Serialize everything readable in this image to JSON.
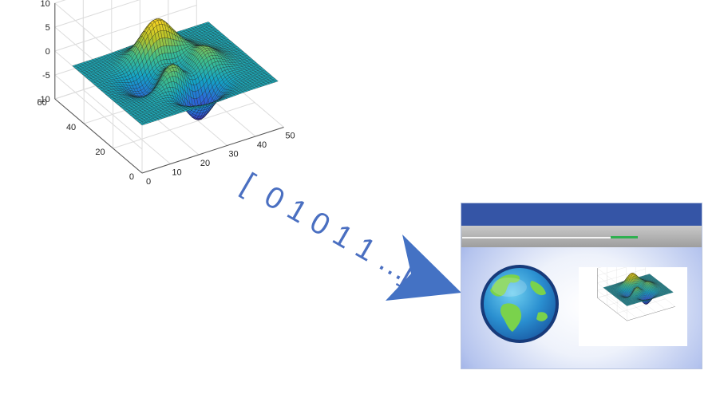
{
  "chart_data": {
    "type": "surface",
    "x_ticks": [
      "0",
      "10",
      "20",
      "30",
      "40",
      "50"
    ],
    "y_ticks": [
      "0",
      "20",
      "40",
      "60"
    ],
    "z_ticks": [
      "10",
      "5",
      "0",
      "-5",
      "-10"
    ],
    "xlim": [
      0,
      50
    ],
    "ylim": [
      0,
      60
    ],
    "zlim": [
      -10,
      10
    ],
    "grid": true,
    "colormap": [
      "#3e26a8",
      "#2a6bd9",
      "#13a3c7",
      "#3fbf8c",
      "#b5c22a",
      "#f9d423"
    ]
  },
  "binary_text": [
    "[",
    "0",
    "1",
    "0",
    "1",
    "1",
    "…",
    "]"
  ],
  "arrow_color": "#4472c4",
  "app_window": {
    "titlebar_color": "#3555a6",
    "progress": 0.87,
    "icons": [
      "globe-icon",
      "surface-plot-thumbnail"
    ]
  }
}
